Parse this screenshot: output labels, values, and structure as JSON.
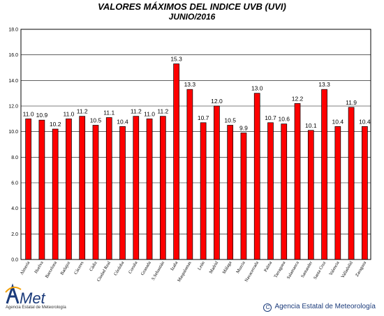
{
  "chart_data": {
    "type": "bar",
    "title": "VALORES MÁXIMOS DEL INDICE UVB (UVI)",
    "subtitle": "JUNIO/2016",
    "xlabel": "",
    "ylabel": "",
    "ylim": [
      0,
      18
    ],
    "yticks": [
      "0.0",
      "2.0",
      "4.0",
      "6.0",
      "8.0",
      "10.0",
      "12.0",
      "14.0",
      "16.0",
      "18.0"
    ],
    "grid": true,
    "bar_color": "#ff0000",
    "categories": [
      "Almería",
      "Huelva",
      "Barcelona",
      "Badajoz",
      "Cáceres",
      "Cádiz",
      "Ciudad Real",
      "Córdoba",
      "Coruña",
      "Granada",
      "S.Sebastián",
      "Izaña",
      "Maspalomas",
      "León",
      "Madrid",
      "Málaga",
      "Murcia",
      "Navacerrada",
      "Palma",
      "Tarragona",
      "Salamanca",
      "Santander",
      "Santa Cruz",
      "Valencia",
      "Valladolid",
      "Zaragoza"
    ],
    "values": [
      11.0,
      10.9,
      10.2,
      11.0,
      11.2,
      10.5,
      11.1,
      10.4,
      11.2,
      11.0,
      11.2,
      15.3,
      13.3,
      10.7,
      12.0,
      10.5,
      9.9,
      13.0,
      10.7,
      10.6,
      12.2,
      10.1,
      13.3,
      10.4,
      11.9,
      10.4
    ],
    "labels": [
      "11.0",
      "10.9",
      "10.2",
      "11.0",
      "11.2",
      "10.5",
      "11.1",
      "10.4",
      "11.2",
      "11.0",
      "11.2",
      "15.3",
      "13.3",
      "10.7",
      "12.0",
      "10.5",
      "9.9",
      "13.0",
      "10.7",
      "10.6",
      "12.2",
      "10.1",
      "13.3",
      "10.4",
      "11.9",
      "10.4"
    ]
  },
  "footer": {
    "logo_text": "AEMet",
    "logo_caption": "Agencia Estatal de Meteorología",
    "copyright_symbol": "C",
    "copyright": "Agencia Estatal de Meteorología"
  }
}
